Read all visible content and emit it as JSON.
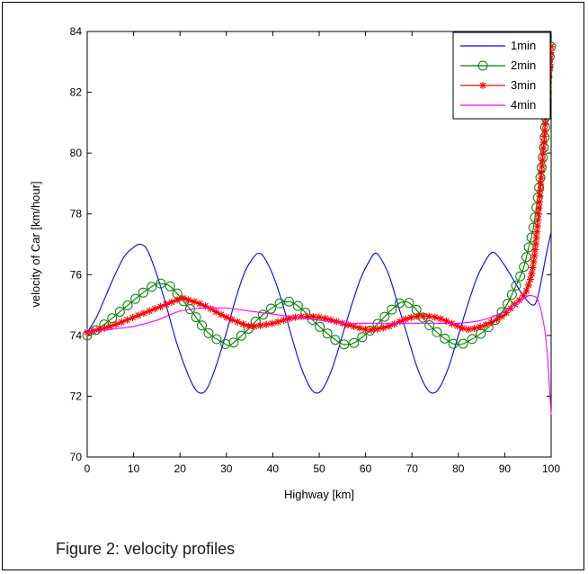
{
  "caption": "Figure 2: velocity profiles",
  "chart_data": {
    "type": "line",
    "xlabel": "Highway [km]",
    "ylabel": "velocity of Car [km/hour]",
    "xlim": [
      0,
      100
    ],
    "ylim": [
      70,
      84
    ],
    "xticks": [
      "0",
      "10",
      "20",
      "30",
      "40",
      "50",
      "60",
      "70",
      "80",
      "90",
      "100"
    ],
    "yticks": [
      "70",
      "72",
      "74",
      "76",
      "78",
      "80",
      "82",
      "84"
    ],
    "grid": false,
    "legend_position": "top-right",
    "series": [
      {
        "name": "1min",
        "color": "#0000ff",
        "marker": "none",
        "x": [
          0,
          2,
          4,
          6,
          8,
          10,
          11.5,
          13,
          15,
          17,
          19,
          21,
          23,
          24.5,
          26,
          28,
          30,
          32,
          34,
          36,
          37,
          38,
          40,
          42,
          44,
          46,
          48,
          49.5,
          51,
          53,
          55,
          57,
          59,
          61,
          62,
          63,
          65,
          67,
          69,
          71,
          73,
          74.5,
          76,
          78,
          80,
          82,
          84,
          86,
          87,
          88,
          90,
          92,
          94,
          96,
          97,
          98,
          99,
          100
        ],
        "y": [
          74.1,
          74.6,
          75.3,
          76.0,
          76.6,
          76.9,
          77.0,
          76.8,
          76.0,
          75.0,
          73.9,
          73.0,
          72.3,
          72.1,
          72.3,
          73.1,
          74.1,
          75.2,
          76.1,
          76.6,
          76.7,
          76.6,
          76.0,
          75.1,
          74.0,
          73.0,
          72.3,
          72.1,
          72.3,
          73.0,
          74.0,
          75.0,
          75.9,
          76.5,
          76.7,
          76.6,
          76.0,
          75.0,
          74.0,
          73.0,
          72.3,
          72.1,
          72.3,
          73.0,
          74.0,
          75.0,
          75.9,
          76.5,
          76.7,
          76.7,
          76.3,
          75.8,
          75.3,
          75.0,
          75.2,
          75.9,
          76.7,
          77.4
        ]
      },
      {
        "name": "2min",
        "color": "#008000",
        "marker": "circle",
        "x": [
          0,
          4,
          8,
          12,
          15,
          16,
          18,
          22,
          26,
          30,
          31,
          34,
          38,
          42,
          43,
          44,
          46,
          50,
          54,
          56,
          58,
          62,
          66,
          68,
          70,
          74,
          78,
          80,
          82,
          86,
          90,
          92,
          94,
          95,
          96,
          97,
          98,
          98.6,
          99.2,
          100
        ],
        "y": [
          74.0,
          74.4,
          74.9,
          75.4,
          75.7,
          75.7,
          75.6,
          74.9,
          74.1,
          73.7,
          73.7,
          74.1,
          74.7,
          75.1,
          75.1,
          75.1,
          74.9,
          74.3,
          73.8,
          73.7,
          73.8,
          74.3,
          74.9,
          75.1,
          75.0,
          74.3,
          73.8,
          73.7,
          73.8,
          74.2,
          74.9,
          75.5,
          76.2,
          76.8,
          77.4,
          78.4,
          79.6,
          80.5,
          82.5,
          83.5
        ]
      },
      {
        "name": "3min",
        "color": "#ff0000",
        "marker": "star",
        "x": [
          0,
          5,
          10,
          15,
          20,
          21,
          25,
          30,
          35,
          36,
          40,
          45,
          50,
          55,
          60,
          62,
          65,
          70,
          75,
          80,
          82,
          85,
          88,
          90,
          92,
          94,
          95,
          96,
          97,
          98,
          99,
          100
        ],
        "y": [
          74.1,
          74.3,
          74.6,
          74.9,
          75.2,
          75.2,
          75.0,
          74.6,
          74.3,
          74.3,
          74.4,
          74.6,
          74.6,
          74.4,
          74.2,
          74.2,
          74.3,
          74.6,
          74.6,
          74.3,
          74.2,
          74.3,
          74.5,
          74.7,
          75.0,
          75.3,
          75.6,
          76.2,
          77.5,
          79.5,
          81.5,
          83.5
        ]
      },
      {
        "name": "4min",
        "color": "#ff00ff",
        "marker": "none",
        "x": [
          0,
          5,
          10,
          15,
          20,
          25,
          30,
          35,
          40,
          45,
          50,
          55,
          60,
          65,
          70,
          75,
          80,
          85,
          90,
          93,
          95,
          96,
          97,
          98,
          99,
          100
        ],
        "y": [
          74.1,
          74.2,
          74.3,
          74.5,
          74.8,
          74.9,
          74.9,
          74.8,
          74.7,
          74.6,
          74.5,
          74.4,
          74.4,
          74.4,
          74.4,
          74.4,
          74.4,
          74.5,
          74.8,
          75.1,
          75.3,
          75.3,
          75.2,
          74.7,
          73.7,
          71.4
        ]
      }
    ]
  }
}
